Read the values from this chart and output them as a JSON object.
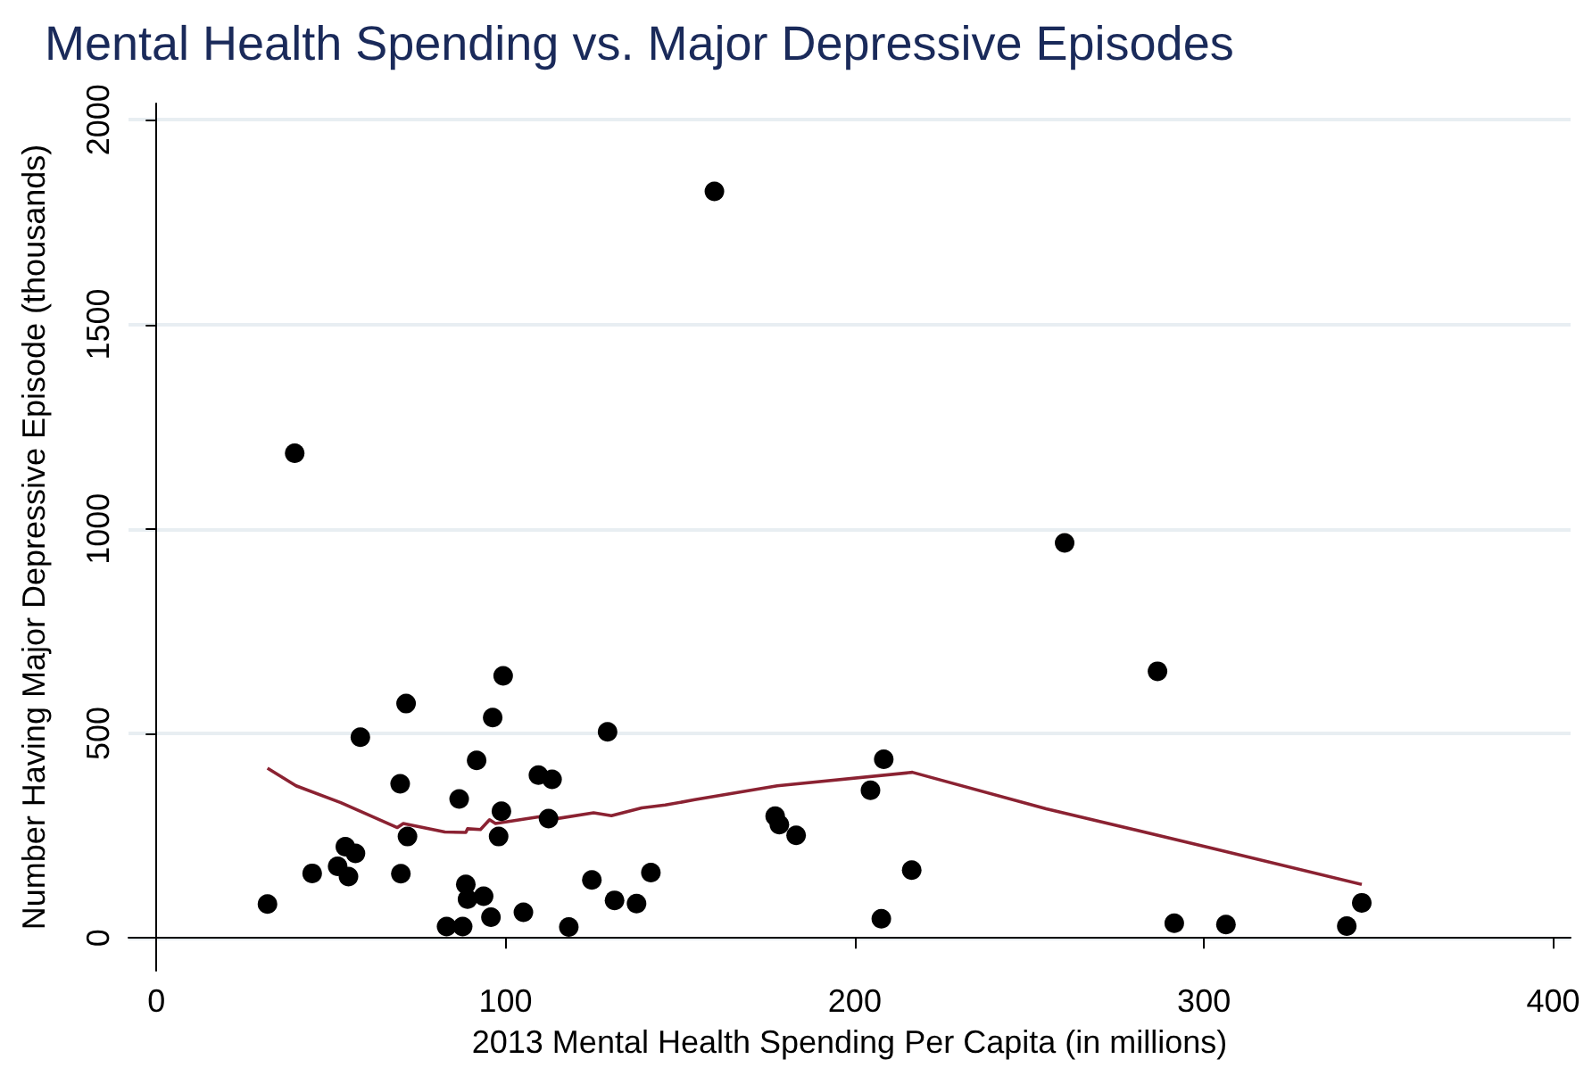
{
  "chart_data": {
    "type": "scatter",
    "title": "Mental Health Spending vs. Major Depressive Episodes",
    "xlabel": "2013 Mental Health Spending Per Capita (in millions)",
    "ylabel": "Number Having Major Depressive Episode (thousands)",
    "xlim": [
      -8,
      405
    ],
    "ylim": [
      -80,
      2040
    ],
    "xticks": [
      0,
      100,
      200,
      300,
      400
    ],
    "yticks": [
      0,
      500,
      1000,
      1500,
      2000
    ],
    "grid": "y",
    "series": [
      {
        "color": "#000000",
        "marker": "circle",
        "x": [
          31.8,
          39.6,
          44.6,
          51.9,
          54.1,
          55.0,
          57.0,
          58.4,
          69.8,
          70.0,
          71.5,
          71.9,
          83.1,
          86.7,
          87.7,
          88.6,
          89.1,
          91.7,
          93.7,
          95.8,
          96.3,
          98.0,
          98.8,
          99.3,
          105.1,
          109.4,
          112.3,
          113.3,
          118.1,
          124.7,
          129.2,
          131.2,
          137.5,
          141.6,
          159.8,
          177.2,
          178.4,
          183.2,
          204.5,
          207.6,
          208.3,
          216.3,
          260.1,
          286.7,
          291.5,
          306.3,
          340.9,
          345.2
        ],
        "values": [
          83,
          1185,
          158,
          175,
          223,
          150,
          207,
          491,
          377,
          157,
          573,
          248,
          28,
          340,
          28,
          131,
          95,
          434,
          102,
          51,
          539,
          248,
          310,
          641,
          63,
          398,
          292,
          388,
          27,
          142,
          504,
          92,
          84,
          160,
          1825,
          298,
          277,
          251,
          361,
          47,
          437,
          166,
          966,
          652,
          36,
          33,
          29,
          86
        ]
      },
      {
        "type": "line",
        "color": "#8b2232",
        "marker": "none",
        "line_style": "solid",
        "x": [
          31.8,
          40,
          52.8,
          69,
          70.7,
          82.6,
          88.6,
          89.1,
          92.8,
          95.4,
          97.1,
          111.6,
          113.3,
          125.2,
          130.3,
          139,
          145.7,
          154.2,
          177.8,
          216.5,
          254.8,
          302.6,
          345.2
        ],
        "values": [
          415,
          372,
          331,
          270,
          280,
          259,
          258,
          267,
          265,
          289,
          280,
          299,
          290,
          306,
          299,
          318,
          325,
          338,
          372,
          405,
          316,
          219,
          131
        ]
      }
    ]
  }
}
